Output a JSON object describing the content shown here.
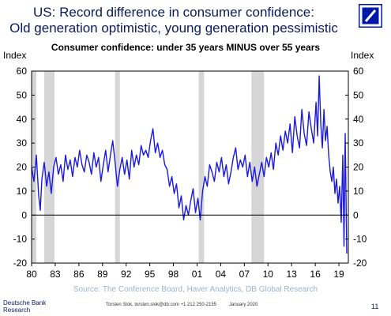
{
  "header": {
    "title_line1": "US: Record difference in consumer confidence:",
    "title_line2": "Old generation optimistic, young generation pessimistic"
  },
  "logo": {
    "name": "deutsche-bank-logo",
    "color": "#0018a8"
  },
  "footer": {
    "brand": "Deutsche Bank Research",
    "author": "Torsten Slok, torsten.slok@db.com  +1 212 250-2155",
    "date": "January 2020",
    "page": "11"
  },
  "chart_data": {
    "type": "line",
    "title": "Consumer confidence: under 35 years MINUS over 55 years",
    "ylabel_left": "Index",
    "ylabel_right": "Index",
    "source": "Source: The Conference Board, Haver Analytics, DB Global Research",
    "xlim": [
      1980,
      2020.2
    ],
    "ylim": [
      -20,
      60
    ],
    "yticks": [
      -20,
      -10,
      0,
      10,
      20,
      30,
      40,
      50,
      60
    ],
    "xticks": [
      1980,
      1983,
      1986,
      1989,
      1992,
      1995,
      1998,
      2001,
      2004,
      2007,
      2010,
      2013,
      2016,
      2019
    ],
    "xtick_labels": [
      "80",
      "83",
      "86",
      "89",
      "92",
      "95",
      "98",
      "01",
      "04",
      "07",
      "10",
      "13",
      "16",
      "19"
    ],
    "recessions": [
      [
        1980.0,
        1980.6
      ],
      [
        1981.6,
        1982.9
      ],
      [
        1990.6,
        1991.2
      ],
      [
        2001.2,
        2001.9
      ],
      [
        2007.9,
        2009.5
      ]
    ],
    "line_color": "#1a1adc",
    "recession_color": "#d6d6d6",
    "grid": false,
    "series": [
      {
        "values": [
          [
            1980.0,
            20
          ],
          [
            1980.3,
            14
          ],
          [
            1980.6,
            25
          ],
          [
            1980.9,
            8
          ],
          [
            1981.1,
            2
          ],
          [
            1981.3,
            15
          ],
          [
            1981.6,
            22
          ],
          [
            1981.9,
            12
          ],
          [
            1982.2,
            18
          ],
          [
            1982.5,
            9
          ],
          [
            1982.8,
            20
          ],
          [
            1983.1,
            24
          ],
          [
            1983.4,
            17
          ],
          [
            1983.7,
            21
          ],
          [
            1984.0,
            14
          ],
          [
            1984.3,
            25
          ],
          [
            1984.6,
            19
          ],
          [
            1984.9,
            23
          ],
          [
            1985.2,
            16
          ],
          [
            1985.5,
            24
          ],
          [
            1985.8,
            20
          ],
          [
            1986.1,
            27
          ],
          [
            1986.4,
            21
          ],
          [
            1986.7,
            18
          ],
          [
            1987.0,
            25
          ],
          [
            1987.3,
            22
          ],
          [
            1987.6,
            17
          ],
          [
            1987.9,
            26
          ],
          [
            1988.2,
            20
          ],
          [
            1988.5,
            24
          ],
          [
            1988.8,
            14
          ],
          [
            1989.1,
            21
          ],
          [
            1989.4,
            27
          ],
          [
            1989.7,
            18
          ],
          [
            1990.0,
            25
          ],
          [
            1990.3,
            31
          ],
          [
            1990.6,
            22
          ],
          [
            1990.9,
            12
          ],
          [
            1991.2,
            19
          ],
          [
            1991.5,
            24
          ],
          [
            1991.8,
            17
          ],
          [
            1992.1,
            23
          ],
          [
            1992.4,
            15
          ],
          [
            1992.7,
            27
          ],
          [
            1993.0,
            20
          ],
          [
            1993.3,
            25
          ],
          [
            1993.6,
            21
          ],
          [
            1993.9,
            29
          ],
          [
            1994.2,
            25
          ],
          [
            1994.5,
            27
          ],
          [
            1994.8,
            24
          ],
          [
            1995.1,
            31
          ],
          [
            1995.4,
            36
          ],
          [
            1995.7,
            26
          ],
          [
            1996.0,
            30
          ],
          [
            1996.3,
            24
          ],
          [
            1996.6,
            27
          ],
          [
            1996.9,
            21
          ],
          [
            1997.2,
            19
          ],
          [
            1997.5,
            12
          ],
          [
            1997.8,
            16
          ],
          [
            1998.1,
            9
          ],
          [
            1998.4,
            13
          ],
          [
            1998.7,
            3
          ],
          [
            1999.0,
            8
          ],
          [
            1999.3,
            -2
          ],
          [
            1999.6,
            4
          ],
          [
            1999.9,
            0
          ],
          [
            2000.2,
            6
          ],
          [
            2000.5,
            11
          ],
          [
            2000.8,
            1
          ],
          [
            2001.1,
            7
          ],
          [
            2001.4,
            -2
          ],
          [
            2001.7,
            10
          ],
          [
            2002.0,
            16
          ],
          [
            2002.3,
            12
          ],
          [
            2002.6,
            21
          ],
          [
            2002.9,
            18
          ],
          [
            2003.2,
            14
          ],
          [
            2003.5,
            22
          ],
          [
            2003.8,
            18
          ],
          [
            2004.1,
            24
          ],
          [
            2004.4,
            16
          ],
          [
            2004.7,
            21
          ],
          [
            2005.0,
            13
          ],
          [
            2005.3,
            18
          ],
          [
            2005.6,
            24
          ],
          [
            2005.9,
            28
          ],
          [
            2006.2,
            19
          ],
          [
            2006.5,
            23
          ],
          [
            2006.8,
            20
          ],
          [
            2007.1,
            25
          ],
          [
            2007.4,
            16
          ],
          [
            2007.7,
            22
          ],
          [
            2008.0,
            14
          ],
          [
            2008.3,
            20
          ],
          [
            2008.6,
            12
          ],
          [
            2008.9,
            17
          ],
          [
            2009.2,
            22
          ],
          [
            2009.5,
            16
          ],
          [
            2009.8,
            24
          ],
          [
            2010.1,
            20
          ],
          [
            2010.4,
            26
          ],
          [
            2010.7,
            19
          ],
          [
            2011.0,
            30
          ],
          [
            2011.3,
            25
          ],
          [
            2011.6,
            33
          ],
          [
            2011.9,
            27
          ],
          [
            2012.2,
            35
          ],
          [
            2012.5,
            30
          ],
          [
            2012.8,
            38
          ],
          [
            2013.1,
            26
          ],
          [
            2013.4,
            41
          ],
          [
            2013.7,
            33
          ],
          [
            2014.0,
            28
          ],
          [
            2014.3,
            44
          ],
          [
            2014.6,
            34
          ],
          [
            2014.9,
            29
          ],
          [
            2015.2,
            43
          ],
          [
            2015.5,
            36
          ],
          [
            2015.8,
            30
          ],
          [
            2016.1,
            47
          ],
          [
            2016.3,
            33
          ],
          [
            2016.5,
            58
          ],
          [
            2016.7,
            38
          ],
          [
            2016.9,
            28
          ],
          [
            2017.1,
            44
          ],
          [
            2017.3,
            31
          ],
          [
            2017.5,
            37
          ],
          [
            2017.7,
            25
          ],
          [
            2017.9,
            18
          ],
          [
            2018.1,
            14
          ],
          [
            2018.3,
            20
          ],
          [
            2018.5,
            9
          ],
          [
            2018.7,
            15
          ],
          [
            2018.9,
            5
          ],
          [
            2019.1,
            12
          ],
          [
            2019.3,
            -3
          ],
          [
            2019.5,
            25
          ],
          [
            2019.65,
            -13
          ],
          [
            2019.8,
            34
          ],
          [
            2020.0,
            -16
          ]
        ]
      }
    ]
  }
}
